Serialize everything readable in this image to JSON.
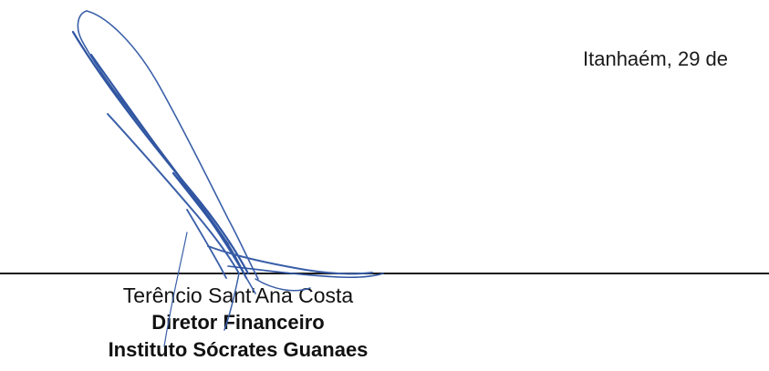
{
  "document": {
    "place_date": "Itanhaém, 29 de",
    "signer": {
      "name": "Terêncio Sant'Ana Costa",
      "role": "Diretor Financeiro",
      "organization": "Instituto Sócrates Guanaes"
    },
    "signature_ink_color": "#3a5fa8"
  }
}
